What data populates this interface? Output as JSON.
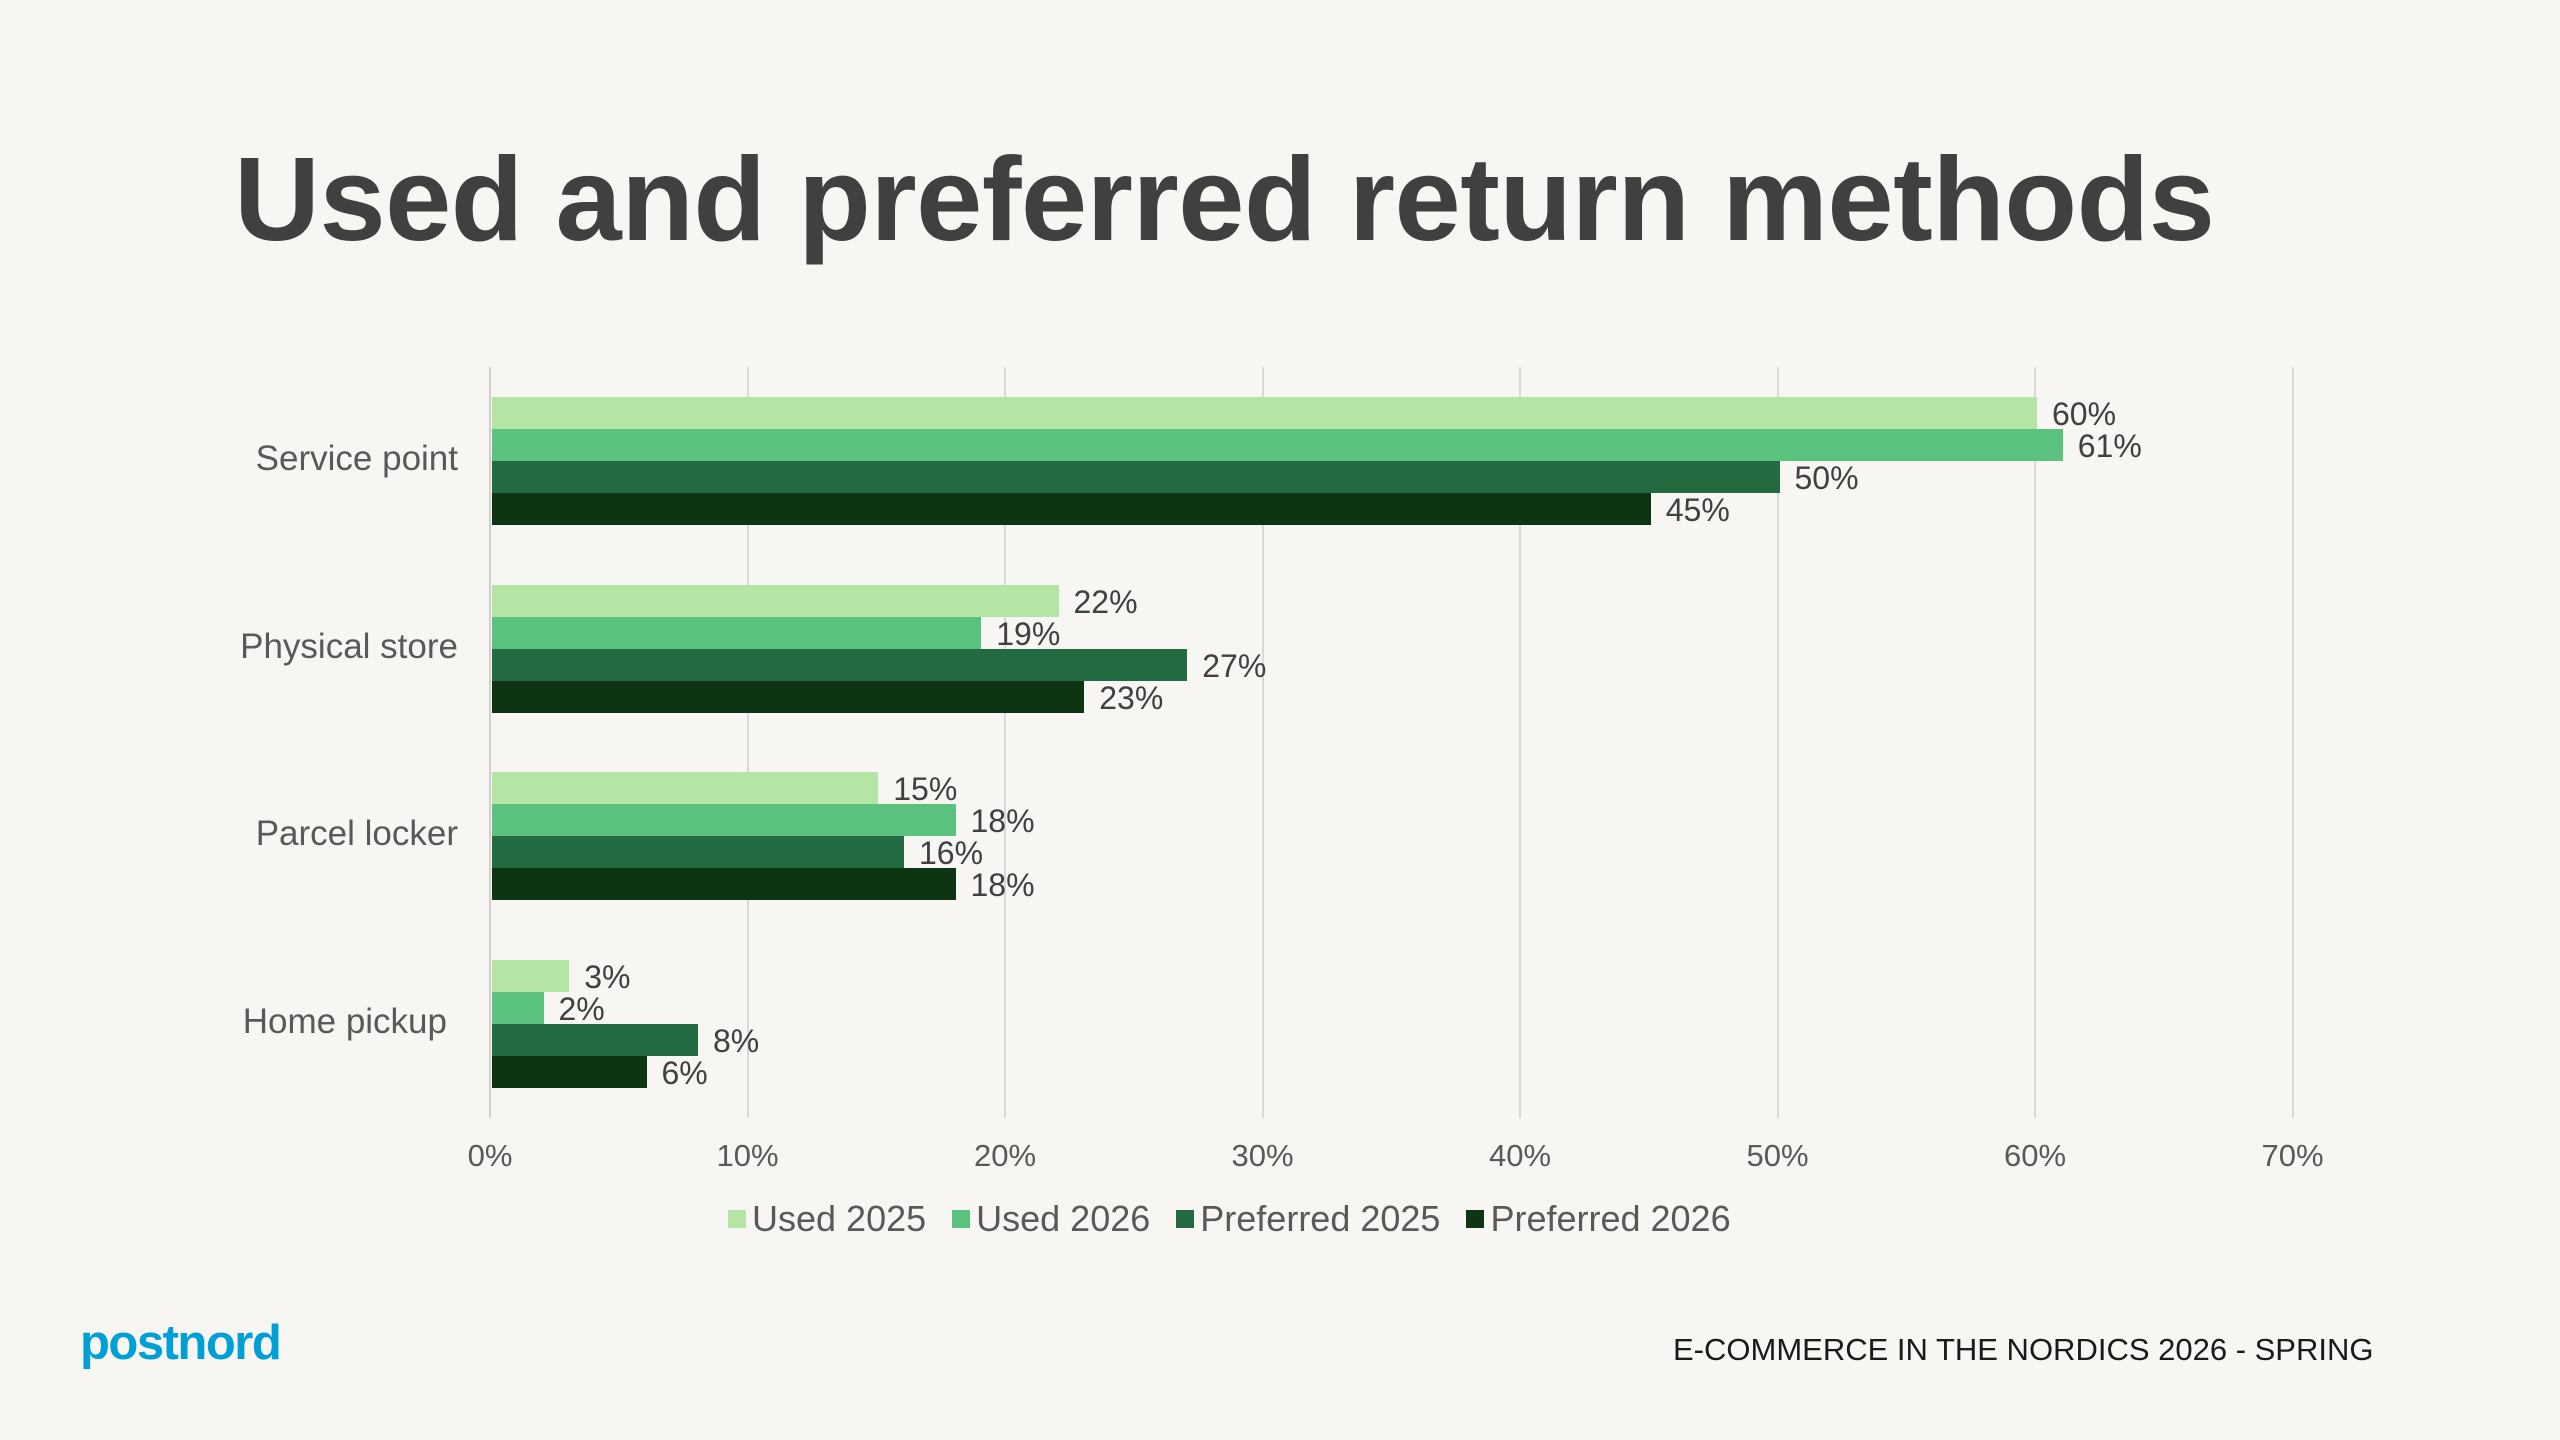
{
  "title": "Used and preferred return methods",
  "chart_data": {
    "type": "bar",
    "orientation": "horizontal",
    "title": "Used and preferred return methods",
    "xlabel": "",
    "ylabel": "",
    "xlim": [
      0,
      70
    ],
    "x_ticks": [
      "0%",
      "10%",
      "20%",
      "30%",
      "40%",
      "50%",
      "60%",
      "70%"
    ],
    "grid": true,
    "legend_position": "bottom",
    "categories": [
      "Service point",
      "Physical store",
      "Parcel locker",
      "Home pickup"
    ],
    "series": [
      {
        "name": "Used 2025",
        "color": "#B5E5A4",
        "values": [
          60,
          22,
          15,
          3
        ],
        "labels": [
          "60%",
          "22%",
          "15%",
          "3%"
        ]
      },
      {
        "name": "Used 2026",
        "color": "#5BC17F",
        "values": [
          61,
          19,
          18,
          2
        ],
        "labels": [
          "61%",
          "19%",
          "18%",
          "2%"
        ]
      },
      {
        "name": "Preferred 2025",
        "color": "#246A40",
        "values": [
          50,
          27,
          16,
          8
        ],
        "labels": [
          "50%",
          "27%",
          "16%",
          "8%"
        ]
      },
      {
        "name": "Preferred 2026",
        "color": "#0D3413",
        "values": [
          45,
          23,
          18,
          6
        ],
        "labels": [
          "45%",
          "23%",
          "18%",
          "6%"
        ]
      }
    ]
  },
  "legend": [
    {
      "label": "Used 2025",
      "color": "#B5E5A4"
    },
    {
      "label": "Used 2026",
      "color": "#5BC17F"
    },
    {
      "label": "Preferred 2025",
      "color": "#246A40"
    },
    {
      "label": "Preferred 2026",
      "color": "#0D3413"
    }
  ],
  "footer": {
    "logo": "postnord",
    "report_title": "E-COMMERCE IN THE NORDICS 2026 - SPRING"
  },
  "colors": {
    "background": "#F7F6F3",
    "title": "#404040",
    "brand": "#00A0D6"
  }
}
